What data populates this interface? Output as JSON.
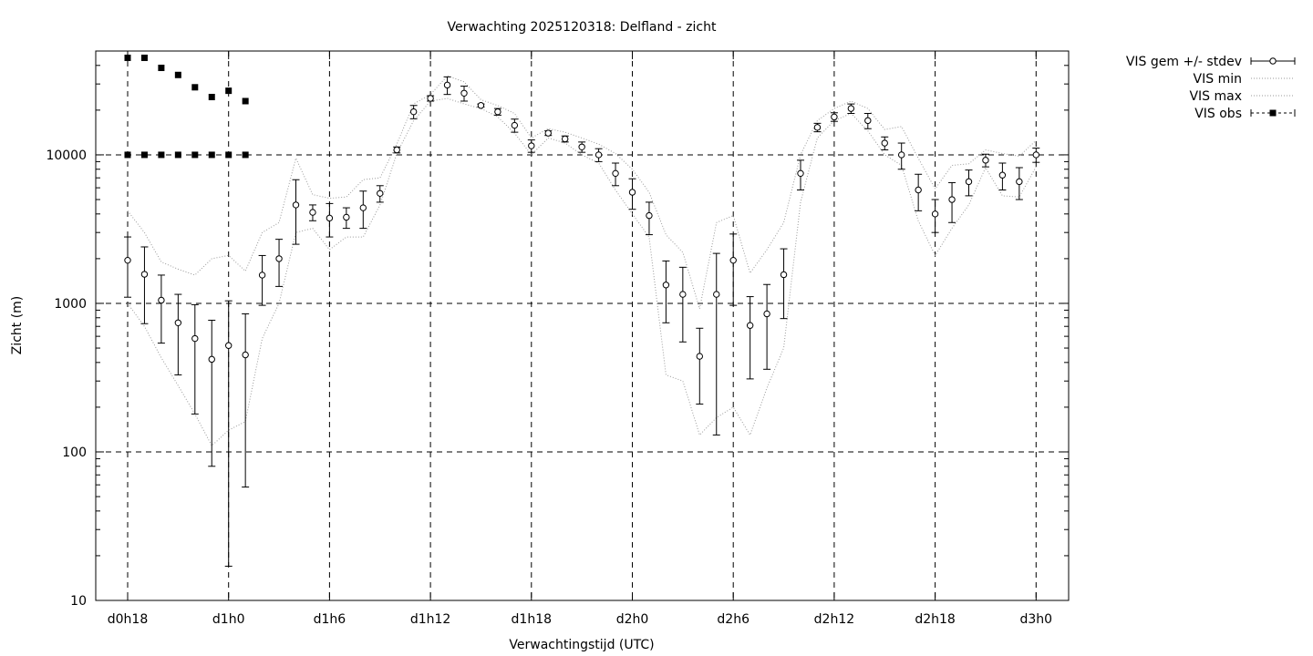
{
  "chart_data": {
    "type": "line",
    "title": "Verwachting 2025120318: Delfland - zicht",
    "xlabel": "Verwachtingstijd (UTC)",
    "ylabel": "Zicht (m)",
    "y_scale": "log",
    "ylim": [
      10,
      50000
    ],
    "y_ticks": [
      {
        "value": 10,
        "label": "10"
      },
      {
        "value": 100,
        "label": "100"
      },
      {
        "value": 1000,
        "label": "1000"
      },
      {
        "value": 10000,
        "label": "10000"
      }
    ],
    "x_unit": "hours since d0h0",
    "xlim": [
      16,
      73.5
    ],
    "x_ticks": [
      {
        "value": 18,
        "label": "d0h18"
      },
      {
        "value": 24,
        "label": "d1h0"
      },
      {
        "value": 30,
        "label": "d1h6"
      },
      {
        "value": 36,
        "label": "d1h12"
      },
      {
        "value": 42,
        "label": "d1h18"
      },
      {
        "value": 48,
        "label": "d2h0"
      },
      {
        "value": 54,
        "label": "d2h6"
      },
      {
        "value": 60,
        "label": "d2h12"
      },
      {
        "value": 66,
        "label": "d2h18"
      },
      {
        "value": 72,
        "label": "d3h0"
      }
    ],
    "grid": "dashed, on major ticks",
    "legend_position": "outside top-right",
    "series": [
      {
        "name": "VIS gem +/- stdev",
        "style": "points-errorbars",
        "x": [
          18,
          19,
          20,
          21,
          22,
          23,
          24,
          25,
          26,
          27,
          28,
          29,
          30,
          31,
          32,
          33,
          34,
          35,
          36,
          37,
          38,
          39,
          40,
          41,
          42,
          43,
          44,
          45,
          46,
          47,
          48,
          49,
          50,
          51,
          52,
          53,
          54,
          55,
          56,
          57,
          58,
          59,
          60,
          61,
          62,
          63,
          64,
          65,
          66,
          67,
          68,
          69,
          70,
          71,
          72
        ],
        "mean": [
          1950,
          1570,
          1050,
          740,
          580,
          420,
          520,
          450,
          1550,
          2000,
          4600,
          4100,
          3750,
          3800,
          4400,
          5500,
          10800,
          19500,
          24000,
          29500,
          26000,
          21500,
          19500,
          15800,
          11500,
          14000,
          12800,
          11300,
          10000,
          7500,
          5600,
          3900,
          1330,
          1150,
          440,
          1150,
          1950,
          710,
          850,
          1560,
          7500,
          15300,
          18000,
          20500,
          17000,
          12000,
          10000,
          5800,
          4000,
          5000,
          6600,
          9200,
          7300,
          6600,
          10000
        ],
        "low": [
          1100,
          730,
          540,
          330,
          180,
          80,
          17,
          58,
          970,
          1300,
          2500,
          3600,
          2800,
          3200,
          3200,
          4800,
          10300,
          17500,
          23000,
          25500,
          23000,
          21000,
          18500,
          14200,
          10400,
          13500,
          12200,
          10400,
          9000,
          6200,
          4300,
          2900,
          740,
          550,
          210,
          130,
          970,
          310,
          360,
          790,
          5800,
          14300,
          16800,
          19000,
          15000,
          10800,
          8000,
          4200,
          3000,
          3500,
          5300,
          8300,
          5800,
          5000,
          8900
        ],
        "high": [
          2800,
          2400,
          1550,
          1150,
          980,
          770,
          1040,
          850,
          2100,
          2700,
          6800,
          4600,
          4700,
          4400,
          5700,
          6200,
          11300,
          21500,
          25000,
          33500,
          29000,
          22000,
          20500,
          17400,
          12600,
          14500,
          13400,
          12200,
          11000,
          8800,
          6900,
          4800,
          1930,
          1750,
          680,
          2170,
          2930,
          1110,
          1340,
          2330,
          9200,
          16300,
          19200,
          22000,
          19000,
          13200,
          12000,
          7400,
          5000,
          6500,
          7900,
          10100,
          8800,
          8200,
          11100
        ]
      },
      {
        "name": "VIS min",
        "style": "dotted",
        "x": [
          18,
          19,
          20,
          21,
          22,
          23,
          24,
          25,
          26,
          27,
          28,
          29,
          30,
          31,
          32,
          33,
          34,
          35,
          36,
          37,
          38,
          39,
          40,
          41,
          42,
          43,
          44,
          45,
          46,
          47,
          48,
          49,
          50,
          51,
          52,
          53,
          54,
          55,
          56,
          57,
          58,
          59,
          60,
          61,
          62,
          63,
          64,
          65,
          66,
          67,
          68,
          69,
          70,
          71,
          72
        ],
        "values": [
          1000,
          700,
          430,
          280,
          180,
          110,
          140,
          160,
          580,
          1000,
          3000,
          3200,
          2300,
          2800,
          2800,
          4600,
          10200,
          17000,
          23000,
          24000,
          22000,
          20500,
          18000,
          14000,
          10000,
          13000,
          12000,
          10000,
          8800,
          5800,
          4000,
          2800,
          330,
          300,
          130,
          170,
          200,
          130,
          270,
          500,
          4800,
          13000,
          17000,
          19000,
          14500,
          10000,
          8500,
          3600,
          2100,
          3200,
          4600,
          8200,
          5300,
          5200,
          8300
        ]
      },
      {
        "name": "VIS max",
        "style": "dotted",
        "x": [
          18,
          19,
          20,
          21,
          22,
          23,
          24,
          25,
          26,
          27,
          28,
          29,
          30,
          31,
          32,
          33,
          34,
          35,
          36,
          37,
          38,
          39,
          40,
          41,
          42,
          43,
          44,
          45,
          46,
          47,
          48,
          49,
          50,
          51,
          52,
          53,
          54,
          55,
          56,
          57,
          58,
          59,
          60,
          61,
          62,
          63,
          64,
          65,
          66,
          67,
          68,
          69,
          70,
          71,
          72
        ],
        "values": [
          4200,
          3000,
          1900,
          1700,
          1550,
          2000,
          2100,
          1650,
          3000,
          3500,
          9500,
          5400,
          5100,
          5200,
          6800,
          7000,
          11800,
          22000,
          25500,
          34000,
          31000,
          23500,
          21500,
          19000,
          13000,
          15000,
          14200,
          13000,
          11800,
          10200,
          8000,
          5600,
          2900,
          2200,
          920,
          3500,
          3900,
          1600,
          2300,
          3500,
          10000,
          17000,
          20500,
          23000,
          20500,
          14800,
          15500,
          9500,
          5900,
          8500,
          8700,
          10800,
          10200,
          9800,
          12500
        ]
      },
      {
        "name": "VIS obs",
        "style": "squares",
        "x": [
          18,
          19,
          20,
          21,
          22,
          23,
          24,
          25,
          18,
          19,
          20,
          21,
          22,
          23,
          24,
          25
        ],
        "values": [
          45000,
          45000,
          38500,
          34500,
          28500,
          24500,
          27000,
          23000,
          10000,
          10000,
          10000,
          10000,
          10000,
          10000,
          10000,
          10000
        ]
      }
    ]
  }
}
